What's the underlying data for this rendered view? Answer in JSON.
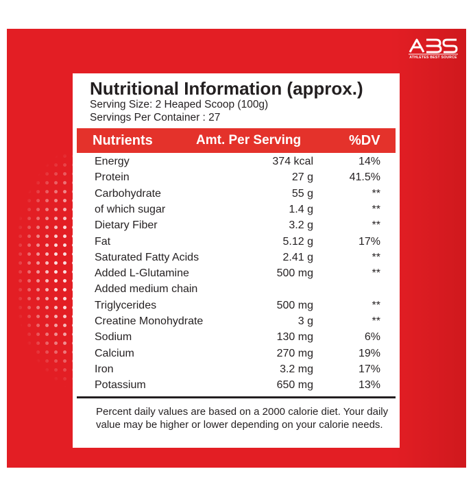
{
  "brand": {
    "logo_text": "ABS",
    "tagline": "ATHLETES BEST SOURCE",
    "colors": {
      "panel": "#e31e24",
      "header": "#e4322b",
      "text": "#231f20"
    }
  },
  "label": {
    "title": "Nutritional Information (approx.)",
    "serving_size": "Serving Size: 2 Heaped Scoop (100g)",
    "servings_per_container": "Servings Per Container : 27"
  },
  "table": {
    "headers": {
      "nutrient": "Nutrients",
      "amount": "Amt. Per Serving",
      "dv": "%DV"
    },
    "rows": [
      {
        "name": "Energy",
        "amount": "374 kcal",
        "dv": "14%"
      },
      {
        "name": "Protein",
        "amount": "27 g",
        "dv": "41.5%"
      },
      {
        "name": "Carbohydrate",
        "amount": "55 g",
        "dv": "**"
      },
      {
        "name": "of which sugar",
        "amount": "1.4 g",
        "dv": "**"
      },
      {
        "name": "Dietary Fiber",
        "amount": "3.2 g",
        "dv": "**"
      },
      {
        "name": "Fat",
        "amount": "5.12 g",
        "dv": "17%"
      },
      {
        "name": "Saturated Fatty Acids",
        "amount": "2.41 g",
        "dv": "**"
      },
      {
        "name": "Added L-Glutamine",
        "amount": "500 mg",
        "dv": "**"
      },
      {
        "name": "Added medium chain",
        "amount": "",
        "dv": ""
      },
      {
        "name": "Triglycerides",
        "amount": "500 mg",
        "dv": "**"
      },
      {
        "name": "Creatine Monohydrate",
        "amount": "3 g",
        "dv": "**"
      },
      {
        "name": "Sodium",
        "amount": "130 mg",
        "dv": "6%"
      },
      {
        "name": "Calcium",
        "amount": "270 mg",
        "dv": "19%"
      },
      {
        "name": "Iron",
        "amount": "3.2 mg",
        "dv": "17%"
      },
      {
        "name": "Potassium",
        "amount": "650 mg",
        "dv": "13%"
      }
    ]
  },
  "footnote": "Percent daily values are based on a 2000 calorie diet. Your daily value may be higher or lower depending on your calorie needs."
}
